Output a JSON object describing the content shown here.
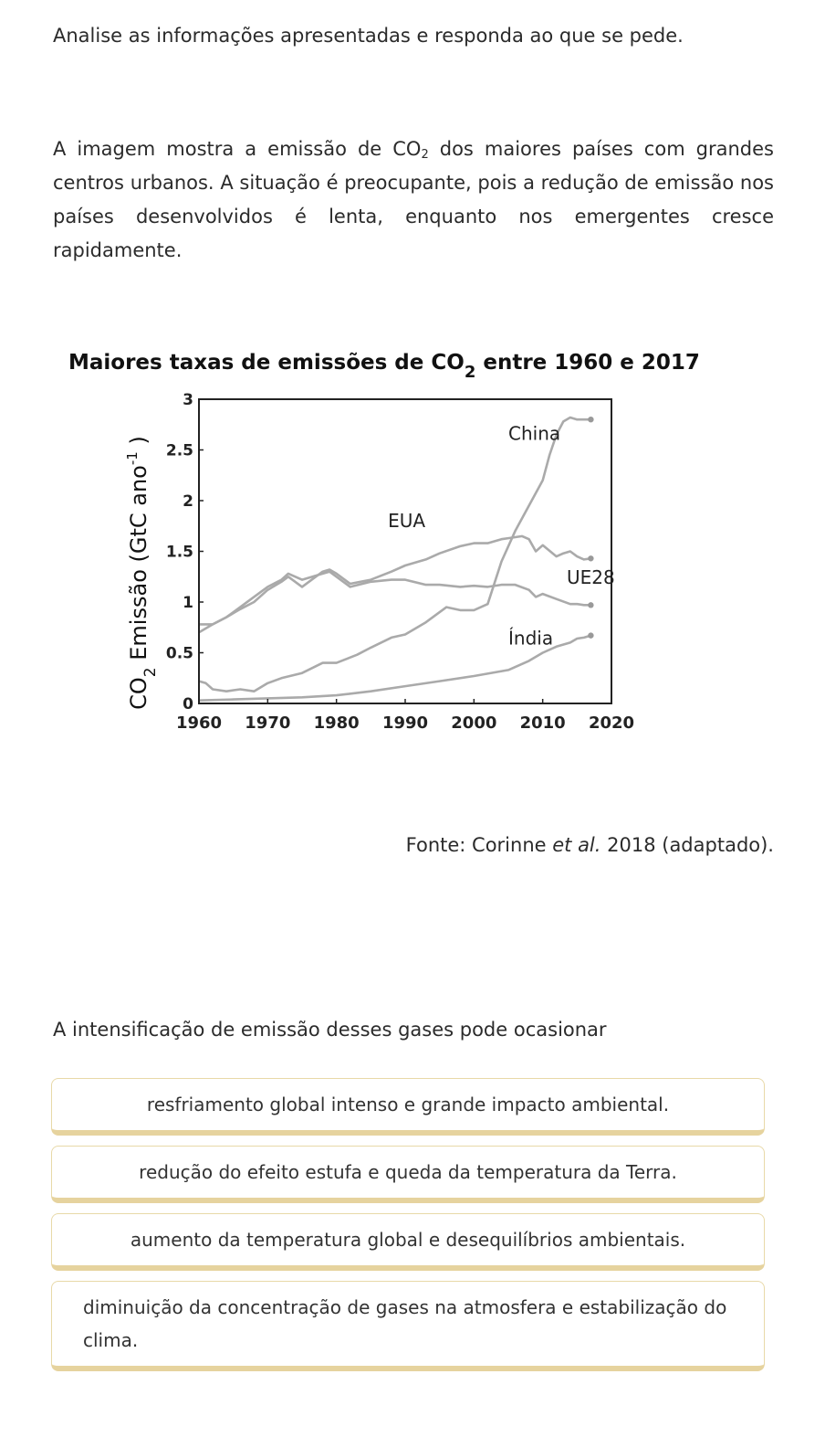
{
  "instruction": "Analise as informações apresentadas e responda ao que se pede.",
  "paragraph": {
    "before": "A imagem mostra a emissão de CO",
    "sub": "2",
    "after": " dos maiores países com grandes centros urbanos. A situação é preocupante, pois a redução de emissão nos países desenvolvidos é lenta, enquanto nos emergentes cresce rapidamente."
  },
  "chart_data": {
    "type": "line",
    "title_before": "Maiores taxas de emissões de CO",
    "title_sub": "2",
    "title_after": " entre 1960 e 2017",
    "ylabel_before": "CO",
    "ylabel_sub": "2",
    "ylabel_mid": " Emissão (GtC ano",
    "ylabel_sup": "-1",
    "ylabel_after": " )",
    "xlim": [
      1960,
      2020
    ],
    "ylim": [
      0,
      3
    ],
    "xticks": [
      "1960",
      "1970",
      "1980",
      "1990",
      "2000",
      "2010",
      "2020"
    ],
    "yticks": [
      "0",
      "0.5",
      "1",
      "1.5",
      "2",
      "2.5",
      "3"
    ],
    "line_color": "#aaaaaa",
    "series": [
      {
        "name": "China",
        "x": [
          1960,
          1961,
          1962,
          1964,
          1966,
          1968,
          1970,
          1972,
          1975,
          1978,
          1980,
          1983,
          1985,
          1988,
          1990,
          1993,
          1996,
          1998,
          2000,
          2002,
          2004,
          2006,
          2008,
          2010,
          2011,
          2012,
          2013,
          2014,
          2015,
          2016,
          2017
        ],
        "y": [
          0.22,
          0.2,
          0.14,
          0.12,
          0.14,
          0.12,
          0.2,
          0.25,
          0.3,
          0.4,
          0.4,
          0.48,
          0.55,
          0.65,
          0.68,
          0.8,
          0.95,
          0.92,
          0.92,
          0.98,
          1.4,
          1.7,
          1.95,
          2.2,
          2.45,
          2.65,
          2.78,
          2.82,
          2.8,
          2.8,
          2.8
        ]
      },
      {
        "name": "EUA",
        "x": [
          1960,
          1962,
          1964,
          1966,
          1968,
          1970,
          1972,
          1973,
          1975,
          1978,
          1979,
          1980,
          1982,
          1985,
          1988,
          1990,
          1993,
          1995,
          1998,
          2000,
          2002,
          2004,
          2005,
          2007,
          2008,
          2009,
          2010,
          2012,
          2013,
          2014,
          2015,
          2016,
          2017
        ],
        "y": [
          0.78,
          0.78,
          0.85,
          0.93,
          1.0,
          1.12,
          1.2,
          1.25,
          1.15,
          1.3,
          1.32,
          1.28,
          1.18,
          1.22,
          1.3,
          1.36,
          1.42,
          1.48,
          1.55,
          1.58,
          1.58,
          1.62,
          1.63,
          1.65,
          1.62,
          1.5,
          1.56,
          1.45,
          1.48,
          1.5,
          1.45,
          1.42,
          1.43
        ]
      },
      {
        "name": "UE28",
        "x": [
          1960,
          1962,
          1964,
          1966,
          1968,
          1970,
          1972,
          1973,
          1975,
          1978,
          1979,
          1980,
          1982,
          1985,
          1988,
          1990,
          1993,
          1995,
          1998,
          2000,
          2002,
          2004,
          2006,
          2008,
          2009,
          2010,
          2012,
          2014,
          2015,
          2016,
          2017
        ],
        "y": [
          0.7,
          0.78,
          0.85,
          0.95,
          1.05,
          1.15,
          1.22,
          1.28,
          1.22,
          1.28,
          1.3,
          1.25,
          1.15,
          1.2,
          1.22,
          1.22,
          1.17,
          1.17,
          1.15,
          1.16,
          1.15,
          1.17,
          1.17,
          1.12,
          1.05,
          1.08,
          1.03,
          0.98,
          0.98,
          0.97,
          0.97
        ]
      },
      {
        "name": "Índia",
        "x": [
          1960,
          1965,
          1970,
          1975,
          1980,
          1985,
          1990,
          1995,
          2000,
          2005,
          2008,
          2010,
          2012,
          2014,
          2015,
          2016,
          2017
        ],
        "y": [
          0.03,
          0.04,
          0.05,
          0.06,
          0.08,
          0.12,
          0.17,
          0.22,
          0.27,
          0.33,
          0.42,
          0.5,
          0.56,
          0.6,
          0.64,
          0.65,
          0.67
        ]
      }
    ],
    "labels": [
      {
        "text": "China",
        "x": 2005,
        "y": 2.6
      },
      {
        "text": "EUA",
        "x": 1987.5,
        "y": 1.74
      },
      {
        "text": "UE28",
        "x": 2013.5,
        "y": 1.18
      },
      {
        "text": "Índia",
        "x": 2005,
        "y": 0.58
      }
    ]
  },
  "source": {
    "before": "Fonte: Corinne ",
    "em": "et al.",
    "after": " 2018 (adaptado)."
  },
  "question": "A intensificação de emissão desses gases pode ocasionar",
  "options": [
    "resfriamento global intenso e grande impacto ambiental.",
    "redução do efeito estufa e queda da temperatura da Terra.",
    "aumento da temperatura global e desequilíbrios ambientais.",
    "diminuição da concentração de gases na atmosfera e estabilização do clima."
  ]
}
